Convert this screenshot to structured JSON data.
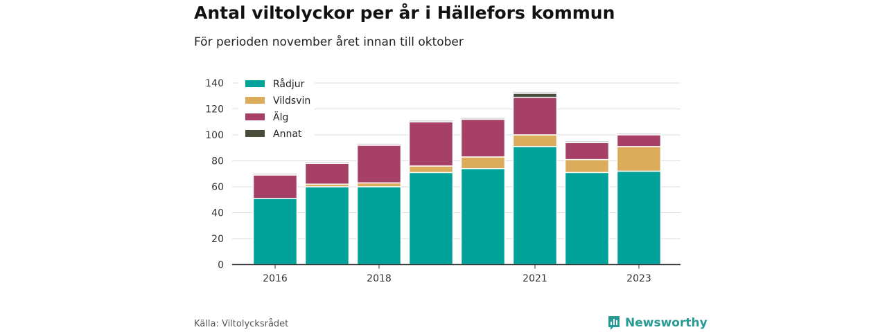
{
  "chart_data": {
    "type": "bar",
    "stacked": true,
    "title": "Antal viltolyckor per år i Hällefors kommun",
    "subtitle": "För perioden november året innan till oktober",
    "categories": [
      "2016",
      "2017",
      "2018",
      "2019",
      "2020",
      "2021",
      "2022",
      "2023"
    ],
    "x_tick_labels": [
      "2016",
      "",
      "2018",
      "",
      "",
      "2021",
      "",
      "2023"
    ],
    "series": [
      {
        "name": "Rådjur",
        "color": "#00a29a",
        "values": [
          51,
          60,
          60,
          71,
          74,
          91,
          71,
          72
        ]
      },
      {
        "name": "Vildsvin",
        "color": "#dbac5c",
        "values": [
          0,
          2,
          3,
          5,
          9,
          9,
          10,
          19
        ]
      },
      {
        "name": "Älg",
        "color": "#a64066",
        "values": [
          18,
          16,
          29,
          34,
          29,
          29,
          13,
          9
        ]
      },
      {
        "name": "Annat",
        "color": "#4a4d3c",
        "values": [
          0,
          0,
          0,
          0,
          0,
          3,
          0,
          0
        ]
      }
    ],
    "ylim": [
      0,
      140
    ],
    "yticks": [
      0,
      20,
      40,
      60,
      80,
      100,
      120,
      140
    ],
    "grid": true,
    "legend_position": "top-left"
  },
  "source": "Källa: Viltolycksrådet",
  "brand": "Newsworthy",
  "colors": {
    "brand": "#2a9a96",
    "grid": "#dddddd",
    "axis": "#333333"
  }
}
